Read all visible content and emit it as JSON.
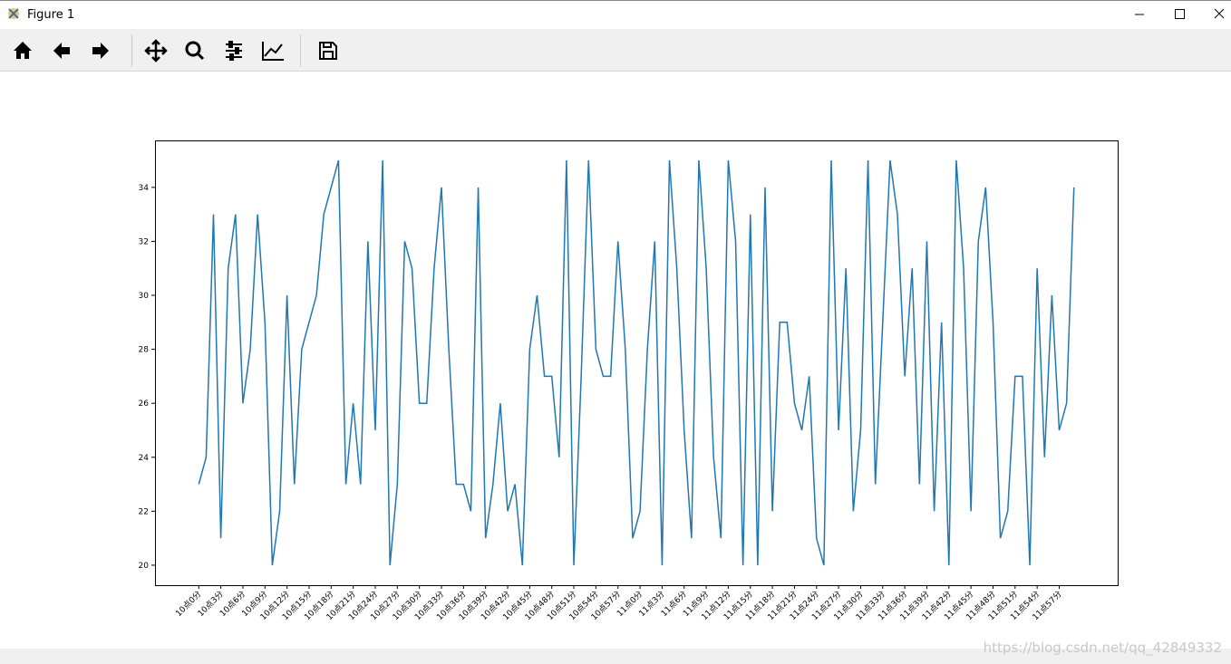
{
  "window": {
    "title": "Figure 1"
  },
  "chart_data": {
    "type": "line",
    "categories": [
      "10点0分",
      null,
      null,
      "10点3分",
      null,
      null,
      "10点6分",
      null,
      null,
      "10点9分",
      null,
      null,
      "10点12分",
      null,
      null,
      "10点15分",
      null,
      null,
      "10点18分",
      null,
      null,
      "10点21分",
      null,
      null,
      "10点24分",
      null,
      null,
      "10点27分",
      null,
      null,
      "10点30分",
      null,
      null,
      "10点33分",
      null,
      null,
      "10点36分",
      null,
      null,
      "10点39分",
      null,
      null,
      "10点42分",
      null,
      null,
      "10点45分",
      null,
      null,
      "10点48分",
      null,
      null,
      "10点51分",
      null,
      null,
      "10点54分",
      null,
      null,
      "10点57分",
      null,
      null,
      "11点0分",
      null,
      null,
      "11点3分",
      null,
      null,
      "11点6分",
      null,
      null,
      "11点9分",
      null,
      null,
      "11点12分",
      null,
      null,
      "11点15分",
      null,
      null,
      "11点18分",
      null,
      null,
      "11点21分",
      null,
      null,
      "11点24分",
      null,
      null,
      "11点27分",
      null,
      null,
      "11点30分",
      null,
      null,
      "11点33分",
      null,
      null,
      "11点36分",
      null,
      null,
      "11点39分",
      null,
      null,
      "11点42分",
      null,
      null,
      "11点45分",
      null,
      null,
      "11点48分",
      null,
      null,
      "11点51分",
      null,
      null,
      "11点54分",
      null,
      null,
      "11点57分",
      null,
      null
    ],
    "values": [
      23,
      24,
      33,
      21,
      31,
      33,
      26,
      28,
      33,
      29,
      20,
      22,
      30,
      23,
      28,
      29,
      30,
      33,
      34,
      35,
      23,
      26,
      23,
      32,
      25,
      35,
      20,
      23,
      32,
      31,
      26,
      26,
      31,
      34,
      28,
      23,
      23,
      22,
      34,
      21,
      23,
      26,
      22,
      23,
      20,
      28,
      30,
      27,
      27,
      24,
      35,
      20,
      27,
      35,
      28,
      27,
      27,
      32,
      28,
      21,
      22,
      28,
      32,
      20,
      35,
      31,
      25,
      21,
      35,
      31,
      24,
      21,
      35,
      32,
      20,
      33,
      20,
      34,
      22,
      29,
      29,
      26,
      25,
      27,
      21,
      20,
      35,
      25,
      31,
      22,
      25,
      35,
      23,
      29,
      35,
      33,
      27,
      31,
      23,
      32,
      22,
      29,
      20,
      35,
      31,
      22,
      32,
      34,
      29,
      21,
      22,
      27,
      27,
      20,
      31,
      24,
      30,
      25,
      26,
      34
    ],
    "color": "#1f77b4",
    "ylim": [
      19.26,
      35.74
    ],
    "yticks": [
      20,
      22,
      24,
      26,
      28,
      30,
      32,
      34
    ]
  },
  "watermark": "https://blog.csdn.net/qq_42849332"
}
